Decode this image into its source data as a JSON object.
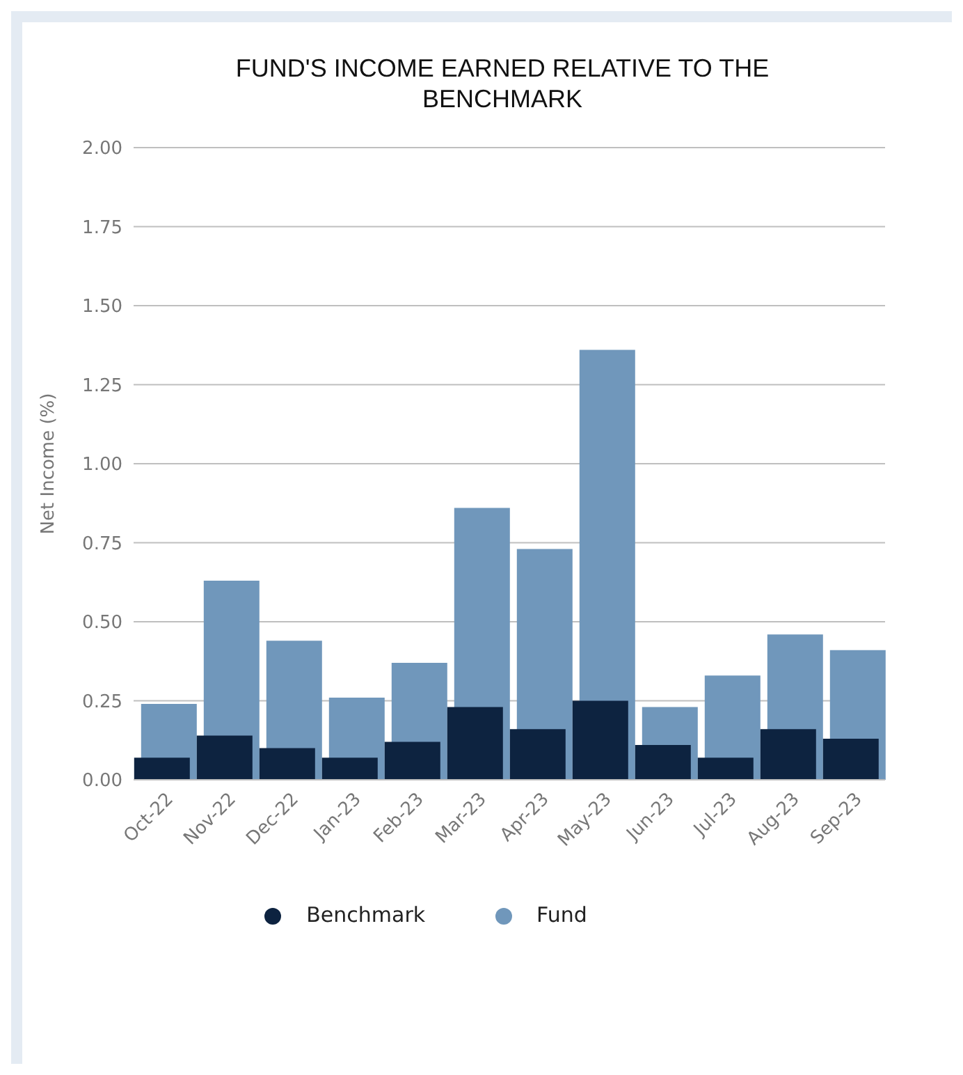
{
  "chart_data": {
    "type": "bar",
    "title": "FUND'S INCOME EARNED RELATIVE TO THE BENCHMARK",
    "ylabel": "Net Income (%)",
    "categories": [
      "Oct-22",
      "Nov-22",
      "Dec-22",
      "Jan-23",
      "Feb-23",
      "Mar-23",
      "Apr-23",
      "May-23",
      "Jun-23",
      "Jul-23",
      "Aug-23",
      "Sep-23"
    ],
    "series": [
      {
        "name": "Fund",
        "color": "#7097bb",
        "values": [
          0.24,
          0.63,
          0.44,
          0.26,
          0.37,
          0.86,
          0.73,
          1.36,
          0.23,
          0.33,
          0.46,
          0.41
        ]
      },
      {
        "name": "Benchmark",
        "color": "#0d2340",
        "values": [
          0.07,
          0.14,
          0.1,
          0.07,
          0.12,
          0.23,
          0.16,
          0.25,
          0.11,
          0.07,
          0.16,
          0.13
        ]
      }
    ],
    "ylim": [
      0,
      2
    ],
    "yticks": [
      {
        "value": 0,
        "label": "0.00"
      },
      {
        "value": 0.25,
        "label": "0.25"
      },
      {
        "value": 0.5,
        "label": "0.50"
      },
      {
        "value": 0.75,
        "label": "0.75"
      },
      {
        "value": 1,
        "label": "1.00"
      },
      {
        "value": 1.25,
        "label": "1.25"
      },
      {
        "value": 1.5,
        "label": "1.50"
      },
      {
        "value": 1.75,
        "label": "1.75"
      },
      {
        "value": 2,
        "label": "2.00"
      }
    ],
    "grid": "y",
    "legend": "bottom"
  }
}
